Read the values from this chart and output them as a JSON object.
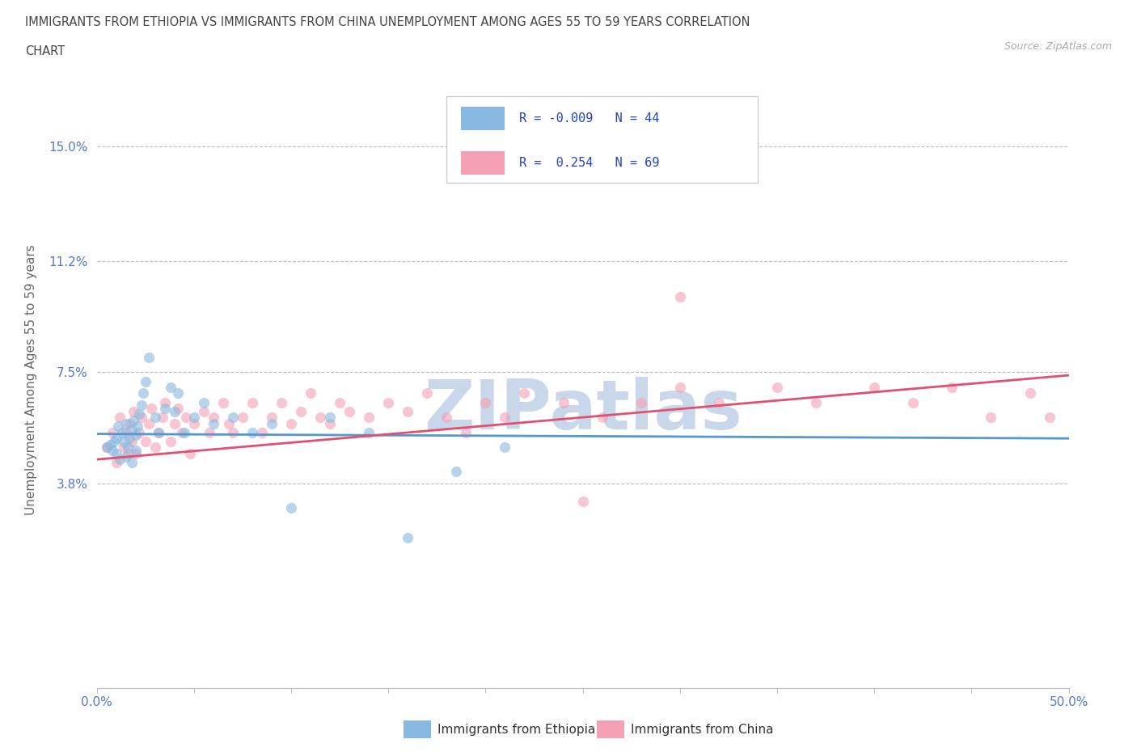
{
  "title_line1": "IMMIGRANTS FROM ETHIOPIA VS IMMIGRANTS FROM CHINA UNEMPLOYMENT AMONG AGES 55 TO 59 YEARS CORRELATION",
  "title_line2": "CHART",
  "source": "Source: ZipAtlas.com",
  "ylabel": "Unemployment Among Ages 55 to 59 years",
  "xlim": [
    0.0,
    0.5
  ],
  "ylim": [
    -0.03,
    0.175
  ],
  "yticks": [
    0.038,
    0.075,
    0.112,
    0.15
  ],
  "ytick_labels": [
    "3.8%",
    "7.5%",
    "11.2%",
    "15.0%"
  ],
  "xticks": [
    0.0,
    0.05,
    0.1,
    0.15,
    0.2,
    0.25,
    0.3,
    0.35,
    0.4,
    0.45,
    0.5
  ],
  "xtick_labels": [
    "0.0%",
    "",
    "",
    "",
    "",
    "",
    "",
    "",
    "",
    "",
    "50.0%"
  ],
  "ethiopia_R": -0.009,
  "ethiopia_N": 44,
  "china_R": 0.254,
  "china_N": 69,
  "ethiopia_color": "#89b8e0",
  "china_color": "#f4a0b5",
  "trendline_ethiopia_color": "#5599cc",
  "trendline_china_color": "#e05070",
  "watermark": "ZIPatlas",
  "watermark_color": "#c8d8ea",
  "legend_ethiopia_label": "Immigrants from Ethiopia",
  "legend_china_label": "Immigrants from China",
  "ethiopia_trendline_x": [
    0.0,
    0.5
  ],
  "ethiopia_trendline_y": [
    0.0545,
    0.053
  ],
  "china_trendline_x": [
    0.0,
    0.5
  ],
  "china_trendline_y": [
    0.046,
    0.074
  ],
  "ethiopia_x": [
    0.005,
    0.007,
    0.008,
    0.009,
    0.01,
    0.01,
    0.011,
    0.012,
    0.013,
    0.014,
    0.015,
    0.015,
    0.016,
    0.017,
    0.018,
    0.018,
    0.019,
    0.02,
    0.02,
    0.021,
    0.022,
    0.023,
    0.024,
    0.025,
    0.027,
    0.03,
    0.032,
    0.035,
    0.038,
    0.04,
    0.042,
    0.045,
    0.05,
    0.055,
    0.06,
    0.07,
    0.08,
    0.09,
    0.1,
    0.12,
    0.14,
    0.16,
    0.185,
    0.21
  ],
  "ethiopia_y": [
    0.05,
    0.051,
    0.049,
    0.052,
    0.053,
    0.048,
    0.057,
    0.046,
    0.055,
    0.052,
    0.058,
    0.047,
    0.05,
    0.053,
    0.056,
    0.045,
    0.059,
    0.049,
    0.054,
    0.057,
    0.061,
    0.064,
    0.068,
    0.072,
    0.08,
    0.06,
    0.055,
    0.063,
    0.07,
    0.062,
    0.068,
    0.055,
    0.06,
    0.065,
    0.058,
    0.06,
    0.055,
    0.058,
    0.03,
    0.06,
    0.055,
    0.02,
    0.042,
    0.05
  ],
  "china_x": [
    0.005,
    0.008,
    0.01,
    0.012,
    0.014,
    0.015,
    0.016,
    0.017,
    0.018,
    0.019,
    0.02,
    0.022,
    0.023,
    0.025,
    0.027,
    0.028,
    0.03,
    0.032,
    0.034,
    0.035,
    0.038,
    0.04,
    0.042,
    0.044,
    0.046,
    0.048,
    0.05,
    0.055,
    0.058,
    0.06,
    0.065,
    0.068,
    0.07,
    0.075,
    0.08,
    0.085,
    0.09,
    0.095,
    0.1,
    0.105,
    0.11,
    0.115,
    0.12,
    0.125,
    0.13,
    0.14,
    0.15,
    0.16,
    0.17,
    0.18,
    0.19,
    0.2,
    0.21,
    0.22,
    0.24,
    0.26,
    0.28,
    0.3,
    0.32,
    0.35,
    0.37,
    0.4,
    0.42,
    0.44,
    0.46,
    0.48,
    0.49,
    0.3,
    0.25
  ],
  "china_y": [
    0.05,
    0.055,
    0.045,
    0.06,
    0.05,
    0.055,
    0.048,
    0.058,
    0.052,
    0.062,
    0.048,
    0.055,
    0.06,
    0.052,
    0.058,
    0.063,
    0.05,
    0.055,
    0.06,
    0.065,
    0.052,
    0.058,
    0.063,
    0.055,
    0.06,
    0.048,
    0.058,
    0.062,
    0.055,
    0.06,
    0.065,
    0.058,
    0.055,
    0.06,
    0.065,
    0.055,
    0.06,
    0.065,
    0.058,
    0.062,
    0.068,
    0.06,
    0.058,
    0.065,
    0.062,
    0.06,
    0.065,
    0.062,
    0.068,
    0.06,
    0.055,
    0.065,
    0.06,
    0.068,
    0.065,
    0.06,
    0.065,
    0.07,
    0.065,
    0.07,
    0.065,
    0.07,
    0.065,
    0.07,
    0.06,
    0.068,
    0.06,
    0.1,
    0.032
  ]
}
